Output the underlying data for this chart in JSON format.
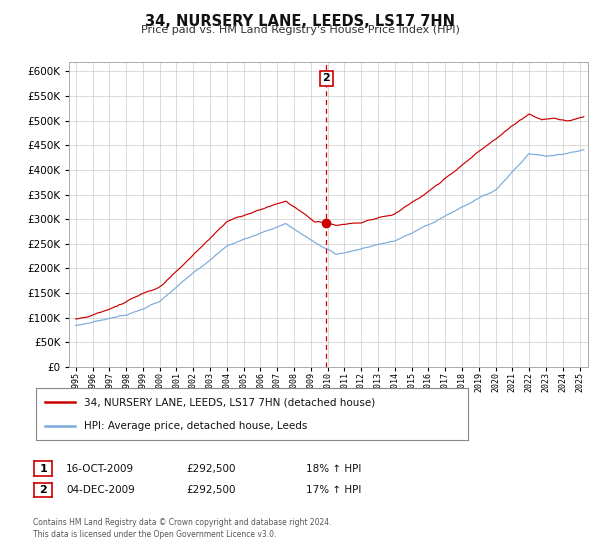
{
  "title": "34, NURSERY LANE, LEEDS, LS17 7HN",
  "subtitle": "Price paid vs. HM Land Registry's House Price Index (HPI)",
  "legend_property": "34, NURSERY LANE, LEEDS, LS17 7HN (detached house)",
  "legend_hpi": "HPI: Average price, detached house, Leeds",
  "transaction1_date": "16-OCT-2009",
  "transaction1_price": "£292,500",
  "transaction1_hpi": "18% ↑ HPI",
  "transaction2_date": "04-DEC-2009",
  "transaction2_price": "£292,500",
  "transaction2_hpi": "17% ↑ HPI",
  "footer": "Contains HM Land Registry data © Crown copyright and database right 2024.\nThis data is licensed under the Open Government Licence v3.0.",
  "property_color": "#cc0000",
  "hpi_color": "#7aaadd",
  "vline_color": "#cc0000",
  "dot_color": "#cc0000",
  "grid_color": "#cccccc",
  "background_color": "#ffffff",
  "ylim": [
    0,
    620000
  ],
  "yticks": [
    0,
    50000,
    100000,
    150000,
    200000,
    250000,
    300000,
    350000,
    400000,
    450000,
    500000,
    550000,
    600000
  ],
  "sale_year": 2009.92,
  "sale_price": 292500,
  "annotation_label": "2"
}
